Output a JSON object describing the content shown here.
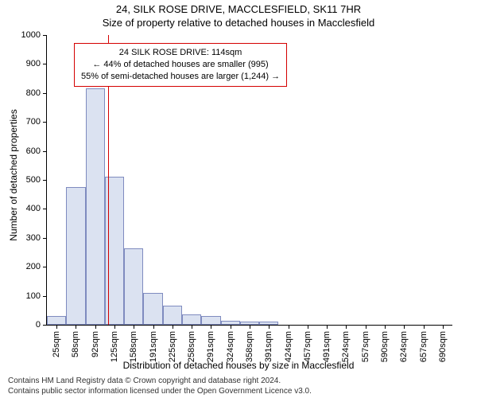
{
  "header": {
    "address": "24, SILK ROSE DRIVE, MACCLESFIELD, SK11 7HR",
    "title": "Size of property relative to detached houses in Macclesfield"
  },
  "chart": {
    "type": "histogram",
    "y_label": "Number of detached properties",
    "x_label": "Distribution of detached houses by size in Macclesfield",
    "ylim": [
      0,
      1000
    ],
    "ytick_step": 100,
    "bars": {
      "categories": [
        "25sqm",
        "58sqm",
        "92sqm",
        "125sqm",
        "158sqm",
        "191sqm",
        "225sqm",
        "258sqm",
        "291sqm",
        "324sqm",
        "358sqm",
        "391sqm",
        "424sqm",
        "457sqm",
        "491sqm",
        "524sqm",
        "557sqm",
        "590sqm",
        "624sqm",
        "657sqm",
        "690sqm"
      ],
      "values": [
        30,
        475,
        815,
        510,
        265,
        110,
        65,
        35,
        30,
        15,
        10,
        10,
        0,
        0,
        0,
        0,
        0,
        0,
        0,
        0,
        0
      ],
      "fill_color": "#dbe2f1",
      "border_color": "#7f8bbf",
      "bar_width_frac": 1.0
    },
    "marker": {
      "position_sqm": 114,
      "color": "#d40000",
      "width": 1
    },
    "info_box": {
      "line1": "24 SILK ROSE DRIVE: 114sqm",
      "line2": "← 44% of detached houses are smaller (995)",
      "line3": "55% of semi-detached houses are larger (1,244) →",
      "border_color": "#d40000",
      "bg_color": "#ffffff",
      "font_size": 11
    },
    "plot": {
      "bg": "#ffffff",
      "axis_color": "#000000"
    }
  },
  "footer": {
    "line1": "Contains HM Land Registry data © Crown copyright and database right 2024.",
    "line2": "Contains public sector information licensed under the Open Government Licence v3.0."
  }
}
